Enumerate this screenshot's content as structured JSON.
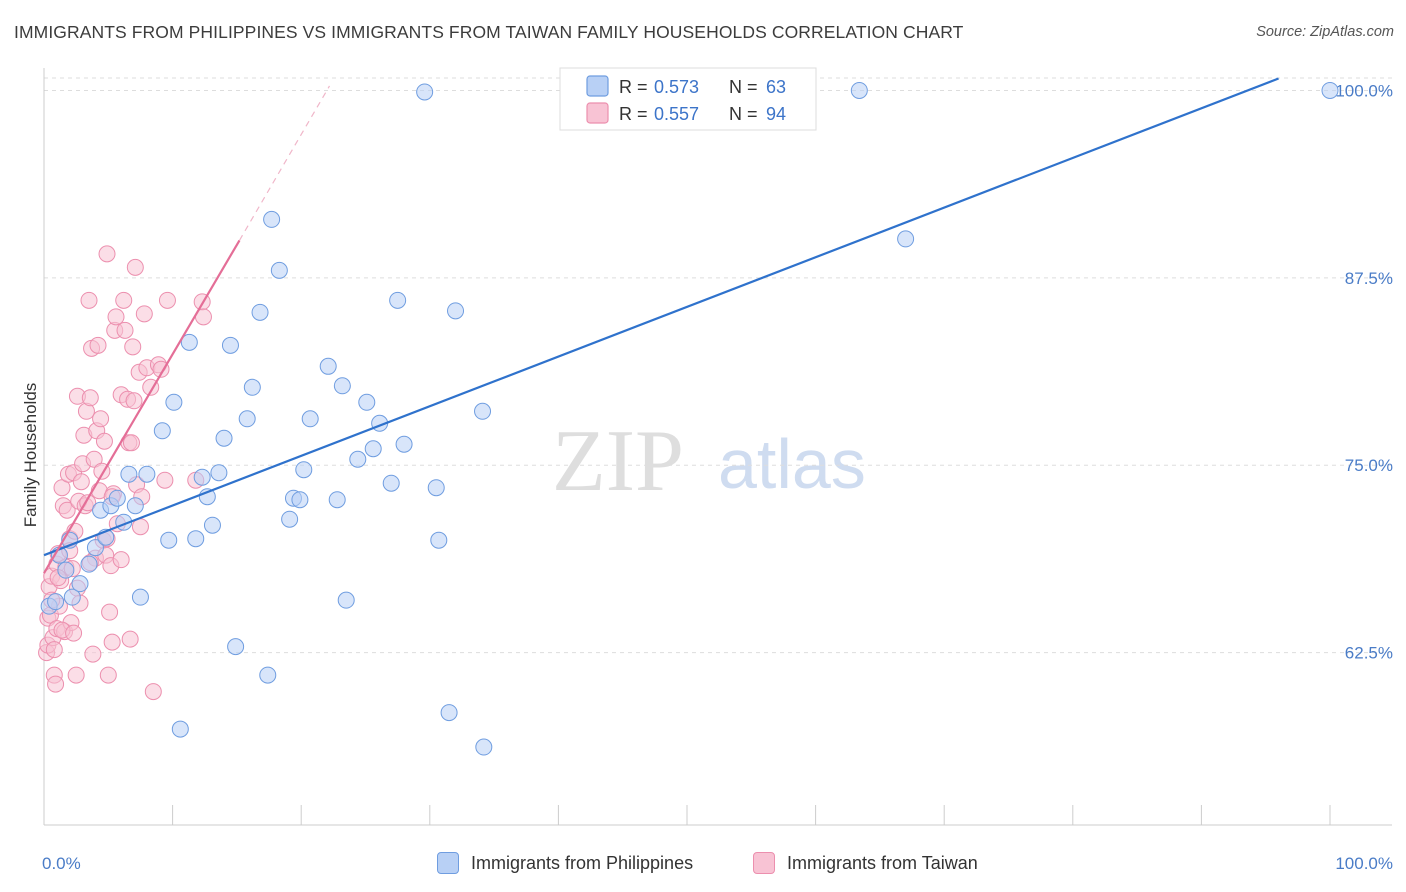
{
  "title": "IMMIGRANTS FROM PHILIPPINES VS IMMIGRANTS FROM TAIWAN FAMILY HOUSEHOLDS CORRELATION CHART",
  "source": "Source: ZipAtlas.com",
  "watermark": {
    "zip": "ZIP",
    "atlas": "atlas"
  },
  "colors": {
    "blue_fill": "#b8d0f5",
    "blue_stroke": "#6f9de0",
    "blue_line": "#2f72cc",
    "pink_fill": "#f8c3d4",
    "pink_stroke": "#ec8fae",
    "pink_line": "#e46e97",
    "grid": "#dddddd",
    "axis_text": "#4a7cc7"
  },
  "legend": {
    "rows": [
      {
        "r_label": "R =",
        "r_value": "0.573",
        "n_label": "N =",
        "n_value": "63",
        "series": "philippines"
      },
      {
        "r_label": "R =",
        "r_value": "0.557",
        "n_label": "N =",
        "n_value": "94",
        "series": "taiwan"
      }
    ]
  },
  "bottom_legend": {
    "philippines": "Immigrants from Philippines",
    "taiwan": "Immigrants from Taiwan"
  },
  "chart_data": {
    "type": "scatter",
    "title": "IMMIGRANTS FROM PHILIPPINES VS IMMIGRANTS FROM TAIWAN FAMILY HOUSEHOLDS CORRELATION CHART",
    "xlabel": "",
    "ylabel": "Family Households",
    "xlim": [
      0,
      100
    ],
    "ylim": [
      51,
      101.5
    ],
    "x_ticks": [
      0,
      10,
      20,
      30,
      40,
      50,
      60,
      70,
      80,
      90,
      100
    ],
    "x_tick_labels": {
      "0": "0.0%",
      "100": "100.0%"
    },
    "y_ticks": [
      62.5,
      75.0,
      87.5,
      100.0
    ],
    "y_tick_labels": [
      "62.5%",
      "75.0%",
      "87.5%",
      "100.0%"
    ],
    "series": [
      {
        "name": "Immigrants from Philippines",
        "color": "blue",
        "R": 0.573,
        "N": 63,
        "trend": {
          "x0": 0,
          "y0": 69.0,
          "x1": 96.0,
          "y1": 100.8,
          "dashed_extension": false
        },
        "points": [
          [
            0.4,
            65.6
          ],
          [
            0.9,
            65.9
          ],
          [
            1.2,
            69.0
          ],
          [
            1.7,
            68.0
          ],
          [
            2.0,
            70.0
          ],
          [
            2.2,
            66.2
          ],
          [
            2.8,
            67.1
          ],
          [
            3.5,
            68.4
          ],
          [
            4.0,
            69.5
          ],
          [
            4.4,
            72.0
          ],
          [
            5.2,
            72.3
          ],
          [
            5.7,
            72.8
          ],
          [
            6.2,
            71.2
          ],
          [
            6.6,
            74.4
          ],
          [
            7.1,
            72.3
          ],
          [
            7.5,
            66.2
          ],
          [
            8.0,
            74.4
          ],
          [
            9.2,
            77.3
          ],
          [
            9.7,
            70.0
          ],
          [
            10.1,
            79.2
          ],
          [
            10.6,
            57.4
          ],
          [
            11.3,
            83.2
          ],
          [
            11.8,
            70.1
          ],
          [
            12.3,
            74.2
          ],
          [
            12.7,
            72.9
          ],
          [
            13.1,
            71.0
          ],
          [
            13.6,
            74.5
          ],
          [
            14.0,
            76.8
          ],
          [
            14.5,
            83.0
          ],
          [
            14.9,
            62.9
          ],
          [
            15.8,
            78.1
          ],
          [
            16.2,
            80.2
          ],
          [
            16.8,
            85.2
          ],
          [
            17.4,
            61.0
          ],
          [
            17.7,
            91.4
          ],
          [
            18.3,
            88.0
          ],
          [
            19.1,
            71.4
          ],
          [
            19.4,
            72.8
          ],
          [
            20.2,
            74.7
          ],
          [
            20.7,
            78.1
          ],
          [
            22.1,
            81.6
          ],
          [
            23.2,
            80.3
          ],
          [
            23.5,
            66.0
          ],
          [
            24.4,
            75.4
          ],
          [
            25.1,
            79.2
          ],
          [
            25.6,
            76.1
          ],
          [
            26.1,
            77.8
          ],
          [
            27.0,
            73.8
          ],
          [
            27.5,
            86.0
          ],
          [
            28.0,
            76.4
          ],
          [
            29.6,
            99.9
          ],
          [
            30.5,
            73.5
          ],
          [
            30.7,
            70.0
          ],
          [
            31.5,
            58.5
          ],
          [
            32.0,
            85.3
          ],
          [
            34.1,
            78.6
          ],
          [
            34.2,
            56.2
          ],
          [
            63.4,
            100.0
          ],
          [
            67.0,
            90.1
          ],
          [
            100.0,
            100.0
          ],
          [
            22.8,
            72.7
          ],
          [
            19.9,
            72.7
          ],
          [
            4.8,
            70.2
          ]
        ]
      },
      {
        "name": "Immigrants from Taiwan",
        "color": "pink",
        "R": 0.557,
        "N": 94,
        "trend": {
          "x0": 0,
          "y0": 67.8,
          "x1": 15.2,
          "y1": 90.0,
          "dashed_to": {
            "x": 22.2,
            "y": 100.3
          }
        },
        "points": [
          [
            0.2,
            62.5
          ],
          [
            0.3,
            63.0
          ],
          [
            0.3,
            64.8
          ],
          [
            0.4,
            66.9
          ],
          [
            0.5,
            65.0
          ],
          [
            0.6,
            67.6
          ],
          [
            0.7,
            63.5
          ],
          [
            0.8,
            61.0
          ],
          [
            0.9,
            60.4
          ],
          [
            1.0,
            68.4
          ],
          [
            1.0,
            64.1
          ],
          [
            1.1,
            69.1
          ],
          [
            1.2,
            65.6
          ],
          [
            1.3,
            67.3
          ],
          [
            1.4,
            73.5
          ],
          [
            1.5,
            72.3
          ],
          [
            1.6,
            63.9
          ],
          [
            1.7,
            68.2
          ],
          [
            1.8,
            72.0
          ],
          [
            1.9,
            74.4
          ],
          [
            2.0,
            70.1
          ],
          [
            2.1,
            64.5
          ],
          [
            2.2,
            68.1
          ],
          [
            2.3,
            74.5
          ],
          [
            2.4,
            70.6
          ],
          [
            2.5,
            61.0
          ],
          [
            2.6,
            79.6
          ],
          [
            2.6,
            66.8
          ],
          [
            2.7,
            72.6
          ],
          [
            2.8,
            65.8
          ],
          [
            2.9,
            73.9
          ],
          [
            3.0,
            75.1
          ],
          [
            3.1,
            77.0
          ],
          [
            3.2,
            72.3
          ],
          [
            3.3,
            78.6
          ],
          [
            3.4,
            72.5
          ],
          [
            3.5,
            86.0
          ],
          [
            3.6,
            79.5
          ],
          [
            3.7,
            82.8
          ],
          [
            3.8,
            62.4
          ],
          [
            3.9,
            75.4
          ],
          [
            4.0,
            68.8
          ],
          [
            4.1,
            77.3
          ],
          [
            4.2,
            83.0
          ],
          [
            4.3,
            73.3
          ],
          [
            4.4,
            78.1
          ],
          [
            4.5,
            74.6
          ],
          [
            4.6,
            70.0
          ],
          [
            4.7,
            76.6
          ],
          [
            4.8,
            69.0
          ],
          [
            4.9,
            89.1
          ],
          [
            5.0,
            61.0
          ],
          [
            5.1,
            65.2
          ],
          [
            5.2,
            68.3
          ],
          [
            5.3,
            63.2
          ],
          [
            5.4,
            73.1
          ],
          [
            5.5,
            84.0
          ],
          [
            5.6,
            84.9
          ],
          [
            5.7,
            71.1
          ],
          [
            6.0,
            79.7
          ],
          [
            6.2,
            86.0
          ],
          [
            6.3,
            84.0
          ],
          [
            6.5,
            79.4
          ],
          [
            6.6,
            76.5
          ],
          [
            6.7,
            63.4
          ],
          [
            6.8,
            76.5
          ],
          [
            6.9,
            82.9
          ],
          [
            7.0,
            79.3
          ],
          [
            7.1,
            88.2
          ],
          [
            7.2,
            73.7
          ],
          [
            7.4,
            81.2
          ],
          [
            7.5,
            70.9
          ],
          [
            7.6,
            72.9
          ],
          [
            7.8,
            85.1
          ],
          [
            8.0,
            81.5
          ],
          [
            8.3,
            80.2
          ],
          [
            8.5,
            59.9
          ],
          [
            8.9,
            81.7
          ],
          [
            9.1,
            81.4
          ],
          [
            9.4,
            74.0
          ],
          [
            9.6,
            86.0
          ],
          [
            11.8,
            74.0
          ],
          [
            12.3,
            85.9
          ],
          [
            12.4,
            84.9
          ],
          [
            0.6,
            66.0
          ],
          [
            1.1,
            67.5
          ],
          [
            2.0,
            69.3
          ],
          [
            0.8,
            62.7
          ],
          [
            1.4,
            64.0
          ],
          [
            2.3,
            63.8
          ],
          [
            3.6,
            68.5
          ],
          [
            4.9,
            70.1
          ],
          [
            5.3,
            72.9
          ],
          [
            6.0,
            68.7
          ]
        ]
      }
    ]
  }
}
